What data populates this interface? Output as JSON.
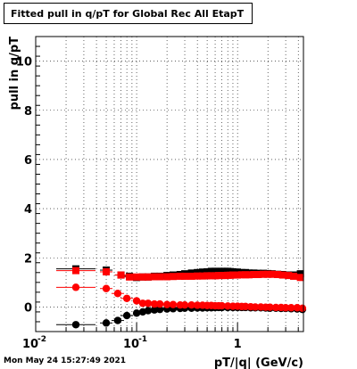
{
  "chart_data": {
    "type": "scatter",
    "title": "Fitted pull in q/pT for Global Rec All EtapT",
    "xlabel": "pT/|q| (GeV/c)",
    "ylabel": "pull in q/pT",
    "x_scale": "log",
    "xlim": [
      0.01,
      4.5
    ],
    "ylim": [
      -1.0,
      11.0
    ],
    "grid": true,
    "x_ticks": [
      {
        "value": 0.01,
        "label": "10",
        "exp": "-2"
      },
      {
        "value": 0.1,
        "label": "10",
        "exp": "-1"
      },
      {
        "value": 1,
        "label": "1",
        "exp": ""
      }
    ],
    "y_ticks": [
      {
        "value": 0,
        "label": "0"
      },
      {
        "value": 2,
        "label": "2"
      },
      {
        "value": 4,
        "label": "4"
      },
      {
        "value": 6,
        "label": "6"
      },
      {
        "value": 8,
        "label": "8"
      },
      {
        "value": 10,
        "label": "10"
      }
    ],
    "series": [
      {
        "color": "#000000",
        "marker": "square",
        "x": [
          0.025,
          0.05,
          0.07,
          0.085,
          0.1,
          0.115,
          0.13,
          0.15,
          0.17,
          0.2,
          0.23,
          0.27,
          0.3,
          0.35,
          0.4,
          0.45,
          0.5,
          0.55,
          0.6,
          0.65,
          0.7,
          0.75,
          0.8,
          0.85,
          0.9,
          1.0,
          1.1,
          1.2,
          1.3,
          1.45,
          1.6,
          1.8,
          2.0,
          2.2,
          2.5,
          2.8,
          3.2,
          3.6,
          4.2
        ],
        "y": [
          1.55,
          1.5,
          1.3,
          1.25,
          1.2,
          1.22,
          1.22,
          1.25,
          1.25,
          1.28,
          1.3,
          1.32,
          1.35,
          1.38,
          1.4,
          1.42,
          1.43,
          1.45,
          1.45,
          1.45,
          1.45,
          1.45,
          1.45,
          1.44,
          1.43,
          1.42,
          1.4,
          1.4,
          1.38,
          1.38,
          1.37,
          1.37,
          1.36,
          1.35,
          1.33,
          1.32,
          1.3,
          1.3,
          1.35
        ]
      },
      {
        "color": "#ff0000",
        "marker": "square",
        "x": [
          0.025,
          0.05,
          0.07,
          0.085,
          0.1,
          0.115,
          0.13,
          0.15,
          0.17,
          0.2,
          0.23,
          0.27,
          0.3,
          0.35,
          0.4,
          0.45,
          0.5,
          0.55,
          0.6,
          0.65,
          0.7,
          0.75,
          0.8,
          0.85,
          0.9,
          1.0,
          1.1,
          1.2,
          1.3,
          1.45,
          1.6,
          1.8,
          2.0,
          2.2,
          2.5,
          2.8,
          3.2,
          3.6,
          4.2
        ],
        "y": [
          1.48,
          1.43,
          1.3,
          1.22,
          1.22,
          1.22,
          1.22,
          1.23,
          1.23,
          1.23,
          1.24,
          1.25,
          1.25,
          1.25,
          1.26,
          1.26,
          1.27,
          1.27,
          1.27,
          1.28,
          1.28,
          1.28,
          1.29,
          1.29,
          1.3,
          1.3,
          1.31,
          1.31,
          1.31,
          1.32,
          1.32,
          1.33,
          1.33,
          1.33,
          1.32,
          1.3,
          1.28,
          1.25,
          1.2
        ]
      },
      {
        "color": "#000000",
        "marker": "circle",
        "x": [
          0.025,
          0.05,
          0.065,
          0.08,
          0.1,
          0.115,
          0.13,
          0.15,
          0.17,
          0.2,
          0.23,
          0.27,
          0.3,
          0.35,
          0.4,
          0.45,
          0.5,
          0.55,
          0.6,
          0.65,
          0.7,
          0.8,
          0.9,
          1.0,
          1.1,
          1.2,
          1.35,
          1.5,
          1.7,
          1.9,
          2.1,
          2.4,
          2.7,
          3.0,
          3.4,
          3.9,
          4.4
        ],
        "y": [
          -0.72,
          -0.65,
          -0.55,
          -0.35,
          -0.25,
          -0.2,
          -0.15,
          -0.12,
          -0.1,
          -0.08,
          -0.07,
          -0.06,
          -0.05,
          -0.05,
          -0.04,
          -0.04,
          -0.03,
          -0.03,
          -0.02,
          -0.02,
          -0.02,
          -0.02,
          -0.02,
          -0.02,
          -0.02,
          -0.02,
          -0.03,
          -0.03,
          -0.03,
          -0.04,
          -0.05,
          -0.05,
          -0.06,
          -0.06,
          -0.07,
          -0.08,
          -0.1
        ]
      },
      {
        "color": "#ff0000",
        "marker": "circle",
        "x": [
          0.025,
          0.05,
          0.065,
          0.08,
          0.1,
          0.115,
          0.13,
          0.15,
          0.17,
          0.2,
          0.23,
          0.27,
          0.3,
          0.35,
          0.4,
          0.45,
          0.5,
          0.55,
          0.6,
          0.65,
          0.7,
          0.8,
          0.9,
          1.0,
          1.1,
          1.2,
          1.35,
          1.5,
          1.7,
          1.9,
          2.1,
          2.4,
          2.7,
          3.0,
          3.4,
          3.9,
          4.4
        ],
        "y": [
          0.8,
          0.75,
          0.55,
          0.35,
          0.25,
          0.15,
          0.15,
          0.12,
          0.12,
          0.1,
          0.1,
          0.08,
          0.08,
          0.08,
          0.07,
          0.07,
          0.06,
          0.06,
          0.05,
          0.05,
          0.05,
          0.04,
          0.03,
          0.03,
          0.02,
          0.02,
          0.01,
          0.0,
          0.0,
          -0.01,
          -0.01,
          -0.02,
          -0.02,
          -0.03,
          -0.03,
          -0.03,
          -0.05
        ]
      }
    ]
  },
  "footer": {
    "timestamp": "Mon May 24 15:27:49 2021"
  }
}
